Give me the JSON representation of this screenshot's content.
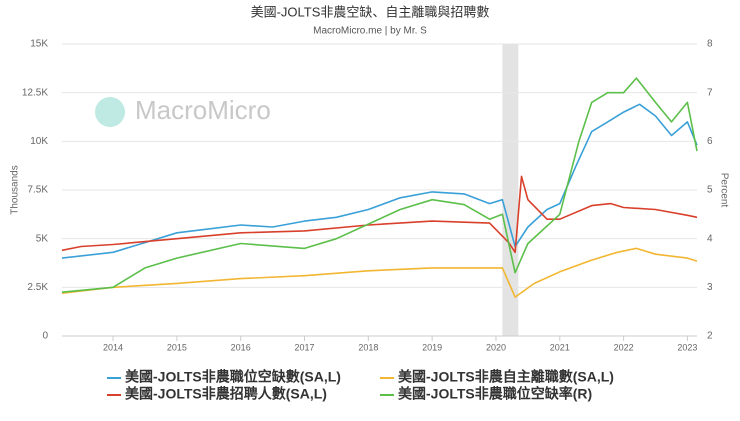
{
  "chart_data": {
    "type": "line",
    "title": "美國-JOLTS非農空缺、自主離職與招聘數",
    "subtitle": "MacroMicro.me | by Mr. S",
    "watermark": "MacroMicro",
    "y_label": "Thousands",
    "y2_label": "Percent",
    "xlim": [
      2013.2,
      2023.15
    ],
    "xticks": [
      2014,
      2015,
      2016,
      2017,
      2018,
      2019,
      2020,
      2021,
      2022,
      2023
    ],
    "ylim": [
      0,
      15000
    ],
    "yticks": [
      0,
      {
        "value": 2500,
        "label": "2.5K"
      },
      {
        "value": 5000,
        "label": "5K"
      },
      {
        "value": 7500,
        "label": "7.5K"
      },
      {
        "value": 10000,
        "label": "10K"
      },
      {
        "value": 12500,
        "label": "12.5K"
      },
      {
        "value": 15000,
        "label": "15K"
      }
    ],
    "y2lim": [
      2,
      8
    ],
    "y2ticks": [
      2,
      3,
      4,
      5,
      6,
      7,
      8
    ],
    "grid": true,
    "shaded_range": [
      2020.1,
      2020.35
    ],
    "series": [
      {
        "name": "美國-JOLTS非農職位空缺數(SA,L)",
        "color": "#3aa0d8",
        "x": [
          2013.2,
          2014,
          2014.5,
          2015,
          2015.5,
          2016,
          2016.5,
          2017,
          2017.5,
          2018,
          2018.5,
          2019,
          2019.5,
          2019.9,
          2020.1,
          2020.3,
          2020.5,
          2020.8,
          2021,
          2021.25,
          2021.5,
          2021.75,
          2022,
          2022.25,
          2022.5,
          2022.75,
          2023,
          2023.15
        ],
        "values": [
          4000,
          4300,
          4800,
          5300,
          5500,
          5700,
          5600,
          5900,
          6100,
          6500,
          7100,
          7400,
          7300,
          6800,
          7000,
          4600,
          5600,
          6500,
          6800,
          8700,
          10500,
          11000,
          11500,
          11900,
          11300,
          10300,
          11000,
          9800
        ]
      },
      {
        "name": "美國-JOLTS非農自主離職數(SA,L)",
        "color": "#f2b632",
        "x": [
          2013.2,
          2014,
          2015,
          2016,
          2017,
          2018,
          2019,
          2020.1,
          2020.3,
          2020.6,
          2021,
          2021.5,
          2021.9,
          2022.2,
          2022.5,
          2023,
          2023.15
        ],
        "values": [
          2200,
          2500,
          2700,
          2950,
          3100,
          3350,
          3500,
          3500,
          2000,
          2700,
          3300,
          3900,
          4300,
          4500,
          4200,
          4000,
          3850
        ]
      },
      {
        "name": "美國-JOLTS非農招聘人數(SA,L)",
        "color": "#d9402b",
        "x": [
          2013.2,
          2013.5,
          2014,
          2015,
          2016,
          2017,
          2018,
          2019,
          2019.9,
          2020.2,
          2020.3,
          2020.4,
          2020.5,
          2020.8,
          2021,
          2021.5,
          2021.8,
          2022,
          2022.5,
          2023,
          2023.15
        ],
        "values": [
          4400,
          4600,
          4700,
          5000,
          5300,
          5400,
          5700,
          5900,
          5800,
          4800,
          4300,
          8200,
          7000,
          6000,
          6000,
          6700,
          6800,
          6600,
          6500,
          6200,
          6100
        ]
      },
      {
        "name": "美國-JOLTS非農職位空缺率(R)",
        "color": "#5cbf4a",
        "axis": "y2",
        "x": [
          2013.2,
          2014,
          2014.5,
          2015,
          2016,
          2017,
          2017.5,
          2018,
          2018.5,
          2019,
          2019.5,
          2019.9,
          2020.1,
          2020.3,
          2020.5,
          2021,
          2021.3,
          2021.5,
          2021.75,
          2022,
          2022.2,
          2022.5,
          2022.75,
          2023,
          2023.15
        ],
        "values": [
          2.9,
          3.0,
          3.4,
          3.6,
          3.9,
          3.8,
          4.0,
          4.3,
          4.6,
          4.8,
          4.7,
          4.4,
          4.5,
          3.3,
          3.9,
          4.5,
          6.0,
          6.8,
          7.0,
          7.0,
          7.3,
          6.8,
          6.4,
          6.8,
          5.8
        ]
      }
    ]
  }
}
